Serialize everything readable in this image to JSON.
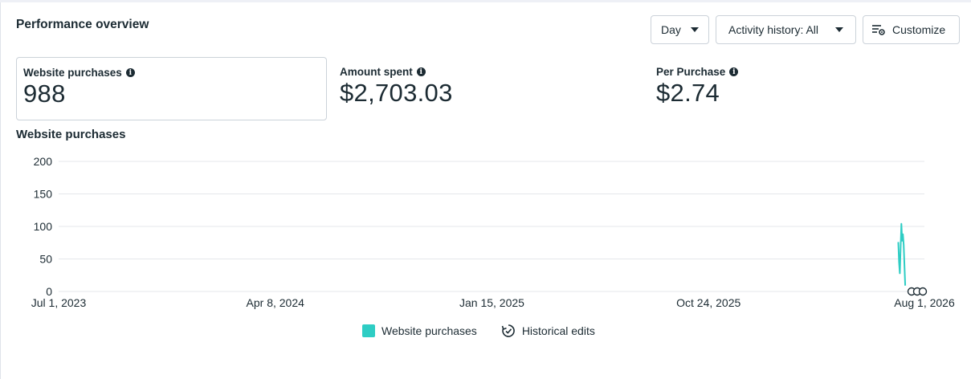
{
  "header": {
    "title": "Performance overview",
    "day_button": "Day",
    "activity_button": "Activity history: All",
    "customize_button": "Customize"
  },
  "metrics": [
    {
      "label": "Website purchases",
      "value": "988"
    },
    {
      "label": "Amount spent",
      "value": "$2,703.03"
    },
    {
      "label": "Per Purchase",
      "value": "$2.74"
    }
  ],
  "chart_title": "Website purchases",
  "chart_data": {
    "type": "line",
    "y_ticks": [
      "200",
      "150",
      "100",
      "50",
      "0"
    ],
    "ylim": [
      0,
      200
    ],
    "x_tick_labels": [
      "Jul 1, 2023",
      "Apr 8, 2024",
      "Jan 15, 2025",
      "Oct 24, 2025",
      "Aug 1, 2026"
    ],
    "series": [
      {
        "name": "Website purchases",
        "color": "#2ecdc4",
        "points": [
          {
            "x": "Jun 28, 2026",
            "y": 76
          },
          {
            "x": "Jun 29, 2026",
            "y": 45
          },
          {
            "x": "Jun 30, 2026",
            "y": 28
          },
          {
            "x": "Jul 2, 2026",
            "y": 104
          },
          {
            "x": "Jul 3, 2026",
            "y": 78
          },
          {
            "x": "Jul 4, 2026",
            "y": 88
          },
          {
            "x": "Jul 5, 2026",
            "y": 72
          },
          {
            "x": "Jul 7, 2026",
            "y": 9
          }
        ]
      }
    ],
    "grid": true
  },
  "legend": [
    {
      "label": "Website purchases",
      "color": "#2ecdc4",
      "icon": "teal-square"
    },
    {
      "label": "Historical edits",
      "icon": "history-icon"
    }
  ]
}
